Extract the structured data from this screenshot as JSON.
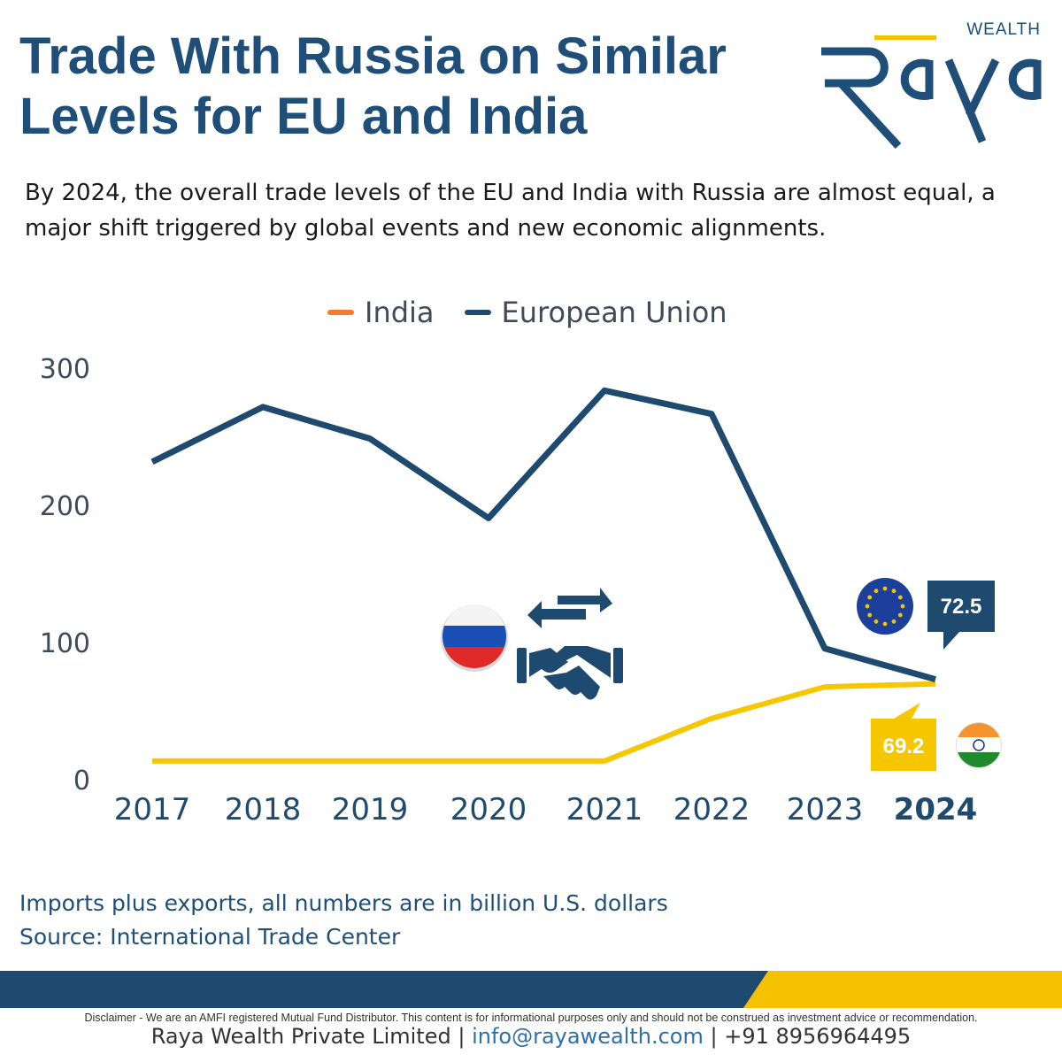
{
  "header": {
    "title_line1": "Trade With Russia on Similar",
    "title_line2": "Levels for EU and India",
    "subtitle_line1": "By 2024, the overall trade levels of the EU and India with Russia are almost equal, a",
    "subtitle_line2": "major shift triggered by global events and new economic alignments."
  },
  "logo": {
    "wordmark": "Raya",
    "tagline": "WEALTH"
  },
  "colors": {
    "navy": "#1f4e79",
    "yellow": "#f6c700",
    "eu_line": "#1f4a70",
    "legend_india": "#f47c2a"
  },
  "chart_data": {
    "type": "line",
    "categories": [
      "2017",
      "2018",
      "2019",
      "2020",
      "2021",
      "2022",
      "2023",
      "2024"
    ],
    "highlight_category": "2024",
    "y_ticks": [
      "300",
      "200",
      "100",
      "0"
    ],
    "ylim": [
      0,
      300
    ],
    "legend_position": "top-center",
    "grid": false,
    "series": [
      {
        "name": "India",
        "color": "#f6c700",
        "legend_color": "#f47c2a",
        "values": [
          13,
          13,
          13,
          13,
          13,
          44,
          67,
          69.2
        ]
      },
      {
        "name": "European Union",
        "color": "#1f4a70",
        "legend_color": "#1f4a70",
        "values": [
          231,
          271,
          248,
          190,
          283,
          266,
          95,
          72.5
        ]
      }
    ],
    "annotations": {
      "eu_label": "72.5",
      "india_label": "69.2"
    }
  },
  "icons": [
    "russia-flag-icon",
    "exchange-arrows-icon",
    "handshake-icon",
    "eu-flag-icon",
    "india-flag-icon"
  ],
  "notes": {
    "line1": "Imports plus exports, all numbers are in billion U.S. dollars",
    "line2": "Source: International Trade Center"
  },
  "footer": {
    "disclaimer": "Disclaimer - We are an AMFI registered Mutual Fund Distributor. This content is for informational purposes only and should not be construed as investment advice or recommendation.",
    "company": "Raya Wealth Private Limited",
    "separator": "|",
    "email": "info@rayawealth.com",
    "phone": "+91 8956964495"
  }
}
